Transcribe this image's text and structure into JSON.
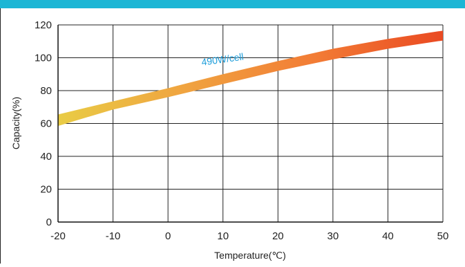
{
  "page": {
    "top_bar_color": "#1cb6d5"
  },
  "chart_data": {
    "type": "area",
    "title": "",
    "xlabel": "Temperature(℃)",
    "ylabel": "Capacity(%)",
    "xlim": [
      -20,
      50
    ],
    "ylim": [
      0,
      120
    ],
    "x_ticks": [
      -20,
      -10,
      0,
      10,
      20,
      30,
      40,
      50
    ],
    "y_ticks": [
      0,
      20,
      40,
      60,
      80,
      100,
      120
    ],
    "x_tick_labels": [
      "-20",
      "-10",
      "0",
      "10",
      "20",
      "30",
      "40",
      "50"
    ],
    "y_tick_labels": [
      "0",
      "20",
      "40",
      "60",
      "80",
      "100",
      "120"
    ],
    "grid": true,
    "legend": "none",
    "annotation": {
      "text": "490W/cell",
      "x": 10,
      "y": 97,
      "color": "#1e9edb"
    },
    "band": {
      "x": [
        -20,
        -10,
        0,
        10,
        20,
        30,
        40,
        50
      ],
      "upper": [
        65.5,
        73.5,
        81.5,
        90,
        98,
        105.5,
        111.5,
        116.5
      ],
      "lower": [
        58.5,
        68.5,
        76,
        84,
        92,
        99,
        105.5,
        110.5
      ],
      "gradient": [
        "#e9cc45",
        "#f0a340",
        "#f27c35",
        "#ea4a22"
      ]
    },
    "colors": {
      "grid": "#222222",
      "axis": "#111111"
    }
  }
}
